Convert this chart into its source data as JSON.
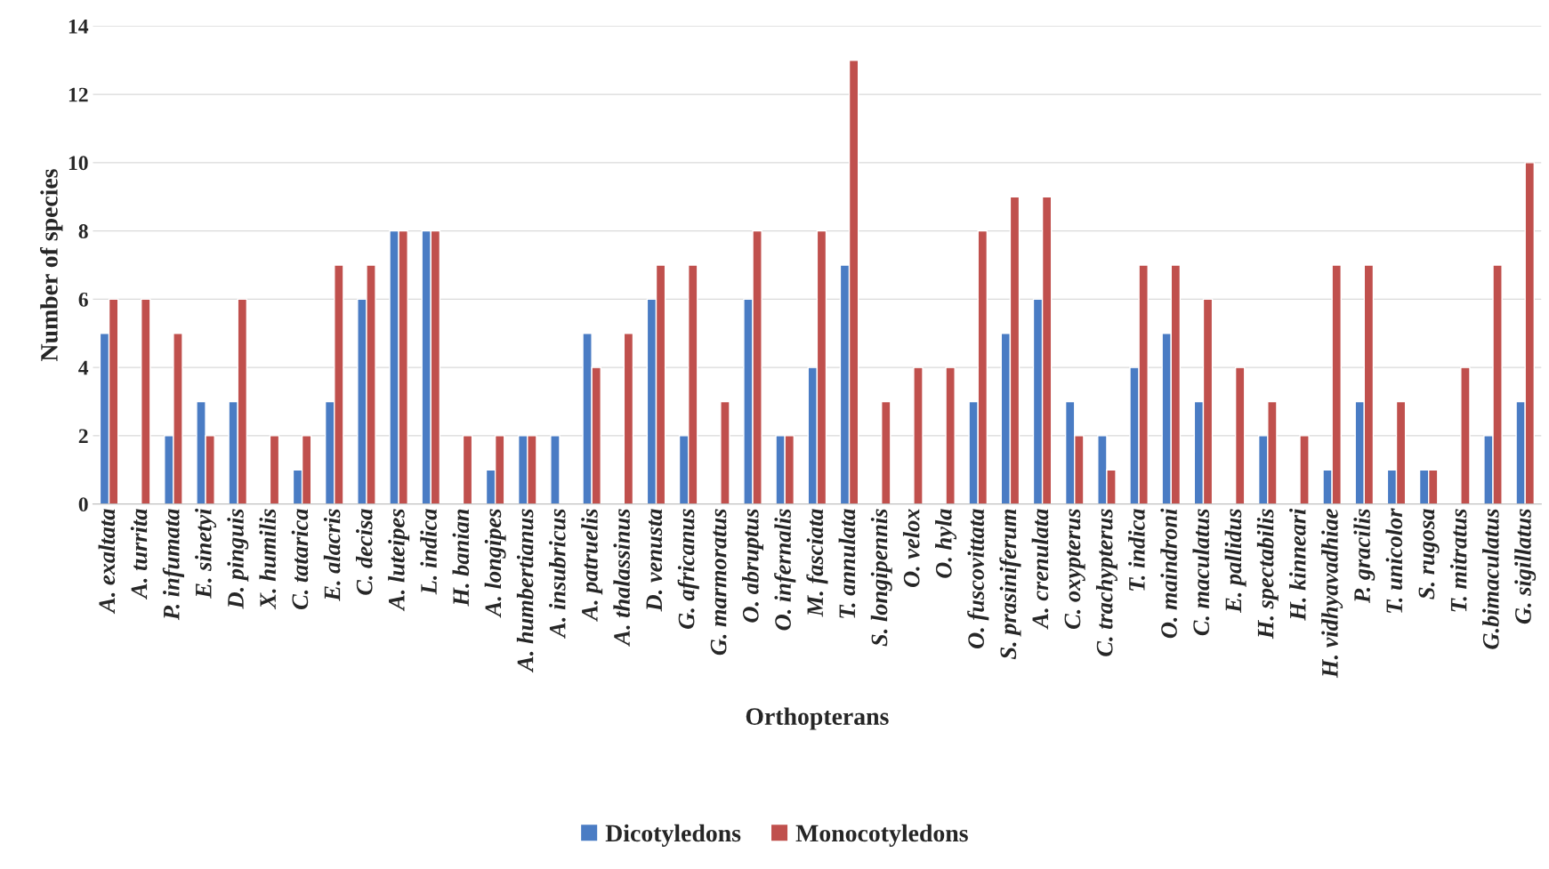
{
  "chart_data": {
    "type": "bar",
    "xlabel": "Orthopterans",
    "ylabel": "Number of species",
    "categories": [
      "A. exaltata",
      "A. turrita",
      "P. infumata",
      "E. sinetyi",
      "D. pinguis",
      "X. humilis",
      "C. tatarica",
      "E. alacris",
      "C. decisa",
      "A. luteipes",
      "L. indica",
      "H. banian",
      "A. longipes",
      "A. humbertianus",
      "A. insubricus",
      "A. patruelis",
      "A. thalassinus",
      "D. venusta",
      "G. africanus",
      "G. marmoratus",
      "O. abruptus",
      "O. infernalis",
      "M. fasciata",
      "T. annulata",
      "S. longipennis",
      "O. velox",
      "O. hyla",
      "O. fuscovittata",
      "S. prasiniferum",
      "A. crenulata",
      "C. oxypterus",
      "C. trachypterus",
      "T. indica",
      "O. maindroni",
      "C. maculatus",
      "E. pallidus",
      "H. spectabilis",
      "H. kinneari",
      "H. vidhyavadhiae",
      "P. gracilis",
      "T. unicolor",
      "S. rugosa",
      "T. mitratus",
      "G.bimaculatus",
      "G. sigillatus"
    ],
    "series": [
      {
        "name": "Dicotyledons",
        "color": "#4a7cc4",
        "values": [
          5,
          null,
          2,
          3,
          3,
          null,
          1,
          3,
          6,
          8,
          8,
          null,
          1,
          2,
          2,
          5,
          null,
          6,
          2,
          null,
          6,
          2,
          4,
          7,
          null,
          null,
          null,
          3,
          5,
          6,
          3,
          2,
          4,
          5,
          3,
          null,
          2,
          null,
          1,
          3,
          1,
          1,
          null,
          2,
          3
        ]
      },
      {
        "name": "Monocotyledons",
        "color": "#c0504d",
        "values": [
          6,
          6,
          5,
          2,
          6,
          2,
          2,
          7,
          7,
          8,
          8,
          2,
          2,
          2,
          null,
          4,
          5,
          7,
          7,
          3,
          8,
          2,
          8,
          13,
          3,
          4,
          4,
          8,
          9,
          9,
          2,
          1,
          7,
          7,
          6,
          4,
          3,
          2,
          7,
          7,
          3,
          1,
          4,
          7,
          10
        ]
      }
    ],
    "ylim": [
      0,
      14
    ],
    "yticks": [
      0,
      2,
      4,
      6,
      8,
      10,
      12,
      14
    ],
    "grid": "y",
    "legend": "bottom"
  }
}
